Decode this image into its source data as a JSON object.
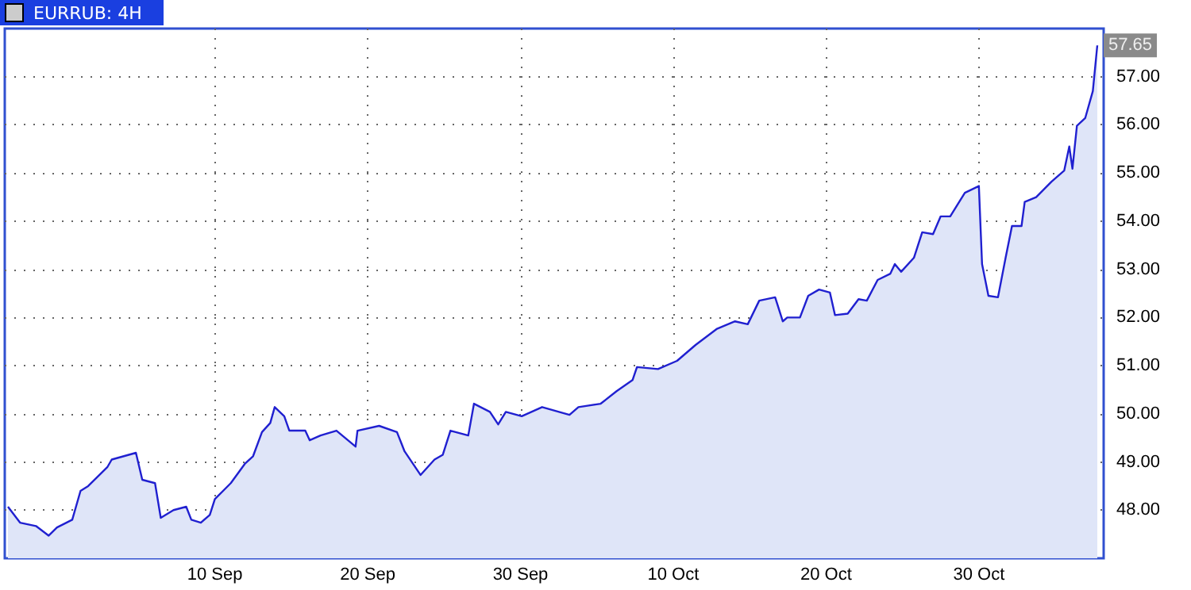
{
  "chart_data": {
    "type": "area",
    "title": "EURRUB: 4H",
    "x": [
      "--08-27T11:00",
      "--08-28T06:00",
      "--08-29T07:00",
      "--08-30T03:00",
      "--08-30T16:00",
      "--08-31T16:00",
      "--09-01T05:00",
      "--09-01T17:00",
      "--09-02T23:00",
      "--09-03T06:00",
      "--09-04T20:00",
      "--09-05T06:00",
      "--09-06T02:00",
      "--09-06T11:00",
      "--09-07T07:00",
      "--09-08T03:00",
      "--09-08T11:00",
      "--09-09T02:00",
      "--09-09T16:00",
      "--09-10T00:00",
      "--09-11T01:00",
      "--09-11T23:00",
      "--09-12T12:00",
      "--09-13T02:00",
      "--09-13T15:00",
      "--09-13T22:00",
      "--09-14T13:00",
      "--09-14T21:00",
      "--09-15T22:00",
      "--09-16T05:00",
      "--09-16T22:00",
      "--09-17T23:00",
      "--09-19T05:00",
      "--09-19T08:00",
      "--09-20T18:00",
      "--09-21T22:00",
      "--09-22T10:00",
      "--09-23T11:00",
      "--09-24T09:00",
      "--09-24T22:00",
      "--09-25T10:00",
      "--09-26T14:00",
      "--09-26T23:00",
      "--09-28T00:00",
      "--09-28T13:00",
      "--09-29T01:00",
      "--09-30T02:00",
      "--10-01T10:00",
      "--10-03T05:00",
      "--10-03T19:00",
      "--10-05T06:00",
      "--10-06T07:00",
      "--10-07T08:00",
      "--10-07T15:00",
      "--10-09T00:00",
      "--10-10T06:00",
      "--10-11T11:00",
      "--10-12T20:00",
      "--10-14T01:00",
      "--10-14T21:00",
      "--10-15T15:00",
      "--10-16T16:00",
      "--10-17T04:00",
      "--10-17T11:00",
      "--10-18T07:00",
      "--10-18T20:00",
      "--10-19T13:00",
      "--10-20T06:00",
      "--10-20T14:00",
      "--10-21T10:00",
      "--10-22T03:00",
      "--10-22T16:00",
      "--10-23T09:00",
      "--10-24T05:00",
      "--10-24T12:00",
      "--10-24T22:00",
      "--10-25T18:00",
      "--10-26T07:00",
      "--10-27T00:00",
      "--10-27T12:00",
      "--10-28T03:00",
      "--10-29T02:00",
      "--10-30T00:00",
      "--10-30T05:00",
      "--10-30T15:00",
      "--10-31T06:00",
      "--10-31T18:00",
      "--11-01T04:00",
      "--11-01T19:00",
      "--11-02T00:00",
      "--11-02T18:00",
      "--11-03T18:00",
      "--11-04T14:00",
      "--11-04T22:00",
      "--11-05T03:00",
      "--11-05T10:00",
      "--11-05T23:00",
      "--11-06T11:00",
      "--11-06T18:00"
    ],
    "series": [
      {
        "color": "#2020d0",
        "values": [
          48.07,
          47.74,
          47.67,
          47.47,
          47.64,
          47.8,
          48.4,
          48.5,
          48.89,
          49.05,
          49.19,
          48.63,
          48.56,
          47.84,
          48.0,
          48.07,
          47.8,
          47.74,
          47.9,
          48.23,
          48.56,
          48.96,
          49.12,
          49.62,
          49.81,
          50.14,
          49.95,
          49.65,
          49.65,
          49.45,
          49.55,
          49.65,
          49.32,
          49.65,
          49.75,
          49.62,
          49.22,
          48.73,
          49.05,
          49.15,
          49.65,
          49.55,
          50.21,
          50.04,
          49.78,
          50.04,
          49.95,
          50.14,
          49.98,
          50.14,
          50.21,
          50.47,
          50.7,
          50.97,
          50.93,
          51.1,
          51.43,
          51.76,
          51.92,
          51.86,
          52.35,
          52.42,
          51.92,
          52.0,
          52.0,
          52.45,
          52.58,
          52.52,
          52.05,
          52.08,
          52.38,
          52.35,
          52.78,
          52.91,
          53.11,
          52.95,
          53.24,
          53.77,
          53.73,
          54.1,
          54.1,
          54.59,
          54.73,
          53.11,
          52.45,
          52.42,
          53.24,
          53.9,
          53.9,
          54.4,
          54.5,
          54.82,
          55.05,
          55.55,
          55.09,
          55.98,
          56.14,
          56.7,
          57.65
        ],
        "value_labels": [
          null,
          null,
          null,
          null,
          null,
          null,
          null,
          null,
          null,
          null,
          null,
          null,
          null,
          null,
          null,
          null,
          null,
          null,
          null,
          null,
          null,
          null,
          null,
          null,
          null,
          null,
          null,
          null,
          null,
          null,
          null,
          null,
          null,
          null,
          null,
          null,
          null,
          null,
          null,
          null,
          null,
          null,
          null,
          null,
          null,
          null,
          null,
          null,
          null,
          null,
          null,
          null,
          null,
          null,
          null,
          null,
          null,
          null,
          null,
          null,
          null,
          null,
          null,
          null,
          null,
          null,
          null,
          null,
          null,
          null,
          null,
          null,
          null,
          null,
          null,
          null,
          null,
          null,
          null,
          null,
          null,
          null,
          null,
          null,
          null,
          null,
          null,
          null,
          null,
          null,
          null,
          null,
          null,
          null,
          null,
          null,
          null,
          null,
          "57.65"
        ]
      }
    ],
    "xlim": [
      "--08-27T06:00",
      "--11-07T04:00"
    ],
    "xticks": [
      {
        "value": "--09-10",
        "label": "10 Sep"
      },
      {
        "value": "--09-20",
        "label": "20 Sep"
      },
      {
        "value": "--09-30",
        "label": "30 Sep"
      },
      {
        "value": "--10-10",
        "label": "10 Oct"
      },
      {
        "value": "--10-20",
        "label": "20 Oct"
      },
      {
        "value": "--10-30",
        "label": "30 Oct"
      }
    ],
    "ylim": [
      47,
      58
    ],
    "yticks": [
      {
        "value": 48,
        "label": "48.00"
      },
      {
        "value": 49,
        "label": "49.00"
      },
      {
        "value": 50,
        "label": "50.00"
      },
      {
        "value": 51,
        "label": "51.00"
      },
      {
        "value": 52,
        "label": "52.00"
      },
      {
        "value": 53,
        "label": "53.00"
      },
      {
        "value": 54,
        "label": "54.00"
      },
      {
        "value": 55,
        "label": "55.00"
      },
      {
        "value": 56,
        "label": "56.00"
      },
      {
        "value": 57,
        "label": "57.00"
      }
    ],
    "grid": true,
    "marker": "none",
    "line_style": "solid"
  }
}
